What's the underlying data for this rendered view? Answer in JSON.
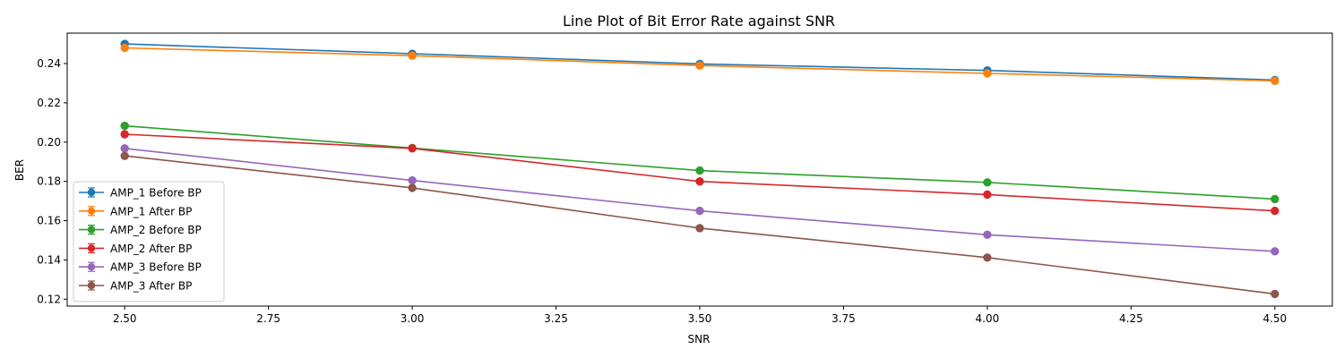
{
  "chart_data": {
    "type": "line",
    "title": "Line Plot of Bit Error Rate against SNR",
    "xlabel": "SNR",
    "ylabel": "BER",
    "xlim": [
      2.4,
      4.6
    ],
    "ylim": [
      0.1165,
      0.2555
    ],
    "x": [
      2.5,
      3.0,
      3.5,
      4.0,
      4.5
    ],
    "xticks": [
      2.5,
      2.75,
      3.0,
      3.25,
      3.5,
      3.75,
      4.0,
      4.25,
      4.5
    ],
    "xtick_labels": [
      "2.50",
      "2.75",
      "3.00",
      "3.25",
      "3.50",
      "3.75",
      "4.00",
      "4.25",
      "4.50"
    ],
    "yticks": [
      0.12,
      0.14,
      0.16,
      0.18,
      0.2,
      0.22,
      0.24
    ],
    "ytick_labels": [
      "0.12",
      "0.14",
      "0.16",
      "0.18",
      "0.20",
      "0.22",
      "0.24"
    ],
    "grid": false,
    "legend_position": "lower-left",
    "markers": "circle with error bars",
    "series": [
      {
        "name": "AMP_1 Before BP",
        "color": "#1f77b4",
        "values": [
          0.25,
          0.245,
          0.2398,
          0.2365,
          0.2316
        ]
      },
      {
        "name": "AMP_1 After BP",
        "color": "#ff7f0e",
        "values": [
          0.248,
          0.244,
          0.239,
          0.235,
          0.2312
        ]
      },
      {
        "name": "AMP_2 Before BP",
        "color": "#2ca02c",
        "values": [
          0.2083,
          0.197,
          0.1855,
          0.1795,
          0.171
        ]
      },
      {
        "name": "AMP_2 After BP",
        "color": "#d62728",
        "values": [
          0.204,
          0.1968,
          0.18,
          0.1733,
          0.165
        ]
      },
      {
        "name": "AMP_3 Before BP",
        "color": "#9467bd",
        "values": [
          0.1968,
          0.1805,
          0.165,
          0.1528,
          0.1444
        ]
      },
      {
        "name": "AMP_3 After BP",
        "color": "#8c564b",
        "values": [
          0.193,
          0.1767,
          0.1562,
          0.1412,
          0.1227
        ]
      }
    ]
  }
}
